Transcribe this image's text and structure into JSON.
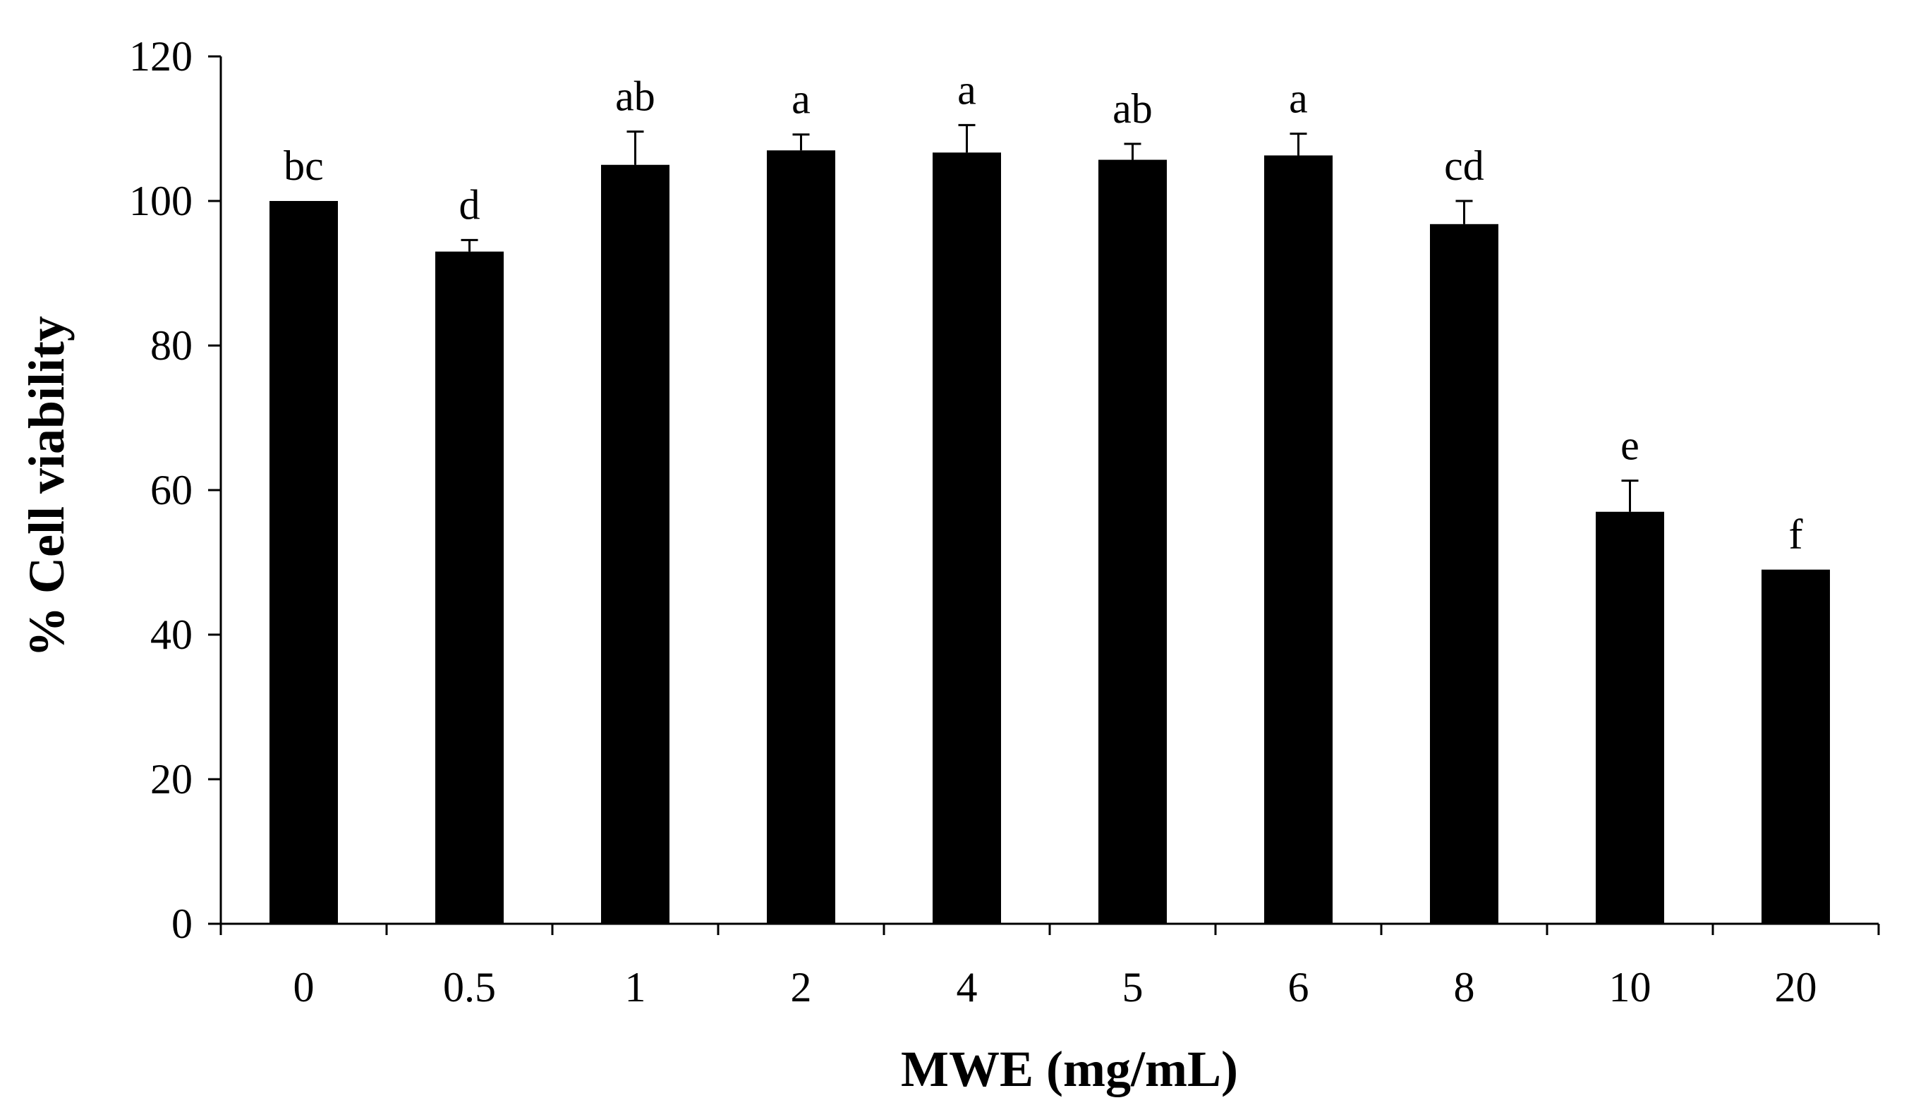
{
  "chart_data": {
    "type": "bar",
    "title": "",
    "xlabel": "MWE (mg/mL)",
    "ylabel": "% Cell viability",
    "ylim": [
      0,
      120
    ],
    "yticks": [
      0,
      20,
      40,
      60,
      80,
      100,
      120
    ],
    "grid": false,
    "categories": [
      "0",
      "0.5",
      "1",
      "2",
      "4",
      "5",
      "6",
      "8",
      "10",
      "20"
    ],
    "values": [
      100,
      93,
      105,
      107,
      106.7,
      105.7,
      106.3,
      96.8,
      57,
      49
    ],
    "error": [
      0,
      1.6,
      4.6,
      2.2,
      3.8,
      2.2,
      3,
      3.2,
      4.3,
      0
    ],
    "labels": [
      "bc",
      "d",
      "ab",
      "a",
      "a",
      "ab",
      "a",
      "cd",
      "e",
      "f"
    ],
    "colors": {
      "bar": "#000000",
      "axis": "#000000",
      "background": "#ffffff"
    }
  }
}
